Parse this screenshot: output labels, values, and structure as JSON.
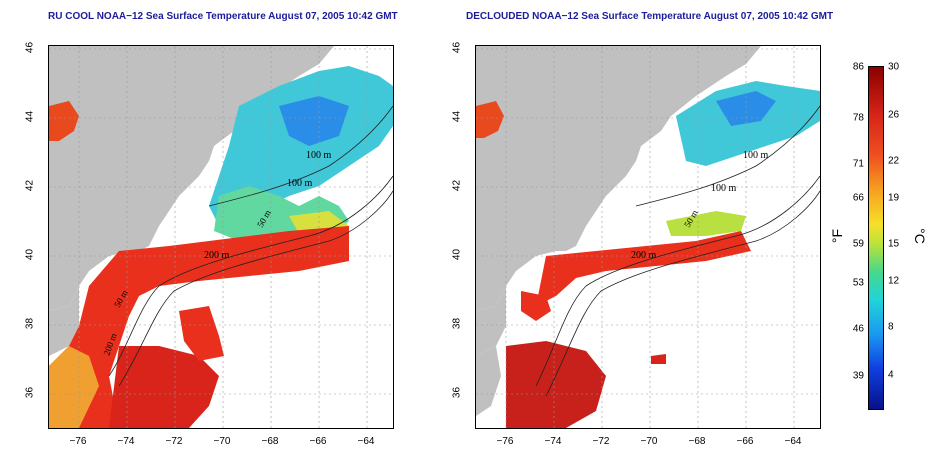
{
  "panels": [
    {
      "title": "RU COOL NOAA−12 Sea Surface Temperature August 07, 2005 10:42 GMT"
    },
    {
      "title": "DECLOUDED NOAA−12 Sea Surface Temperature August 07, 2005 10:42 GMT"
    }
  ],
  "axes": {
    "longitude_ticks": [
      "−76",
      "−74",
      "−72",
      "−70",
      "−68",
      "−66",
      "−64"
    ],
    "latitude_ticks": [
      "46",
      "44",
      "42",
      "40",
      "38",
      "36"
    ]
  },
  "contours": {
    "label_100": "100 m",
    "label_200": "200 m",
    "label_50": "50 m"
  },
  "colorbar": {
    "fahrenheit_ticks": [
      "86",
      "78",
      "71",
      "66",
      "59",
      "53",
      "46",
      "39"
    ],
    "celsius_ticks": [
      "30",
      "26",
      "22",
      "19",
      "15",
      "12",
      "8",
      "4"
    ],
    "fahrenheit_unit": "°F",
    "celsius_unit": "°C"
  },
  "colors": {
    "land": "#c0c0c0",
    "title": "#1c1c9c",
    "warm": "#e8301c",
    "cool": "#3ab0e8"
  }
}
